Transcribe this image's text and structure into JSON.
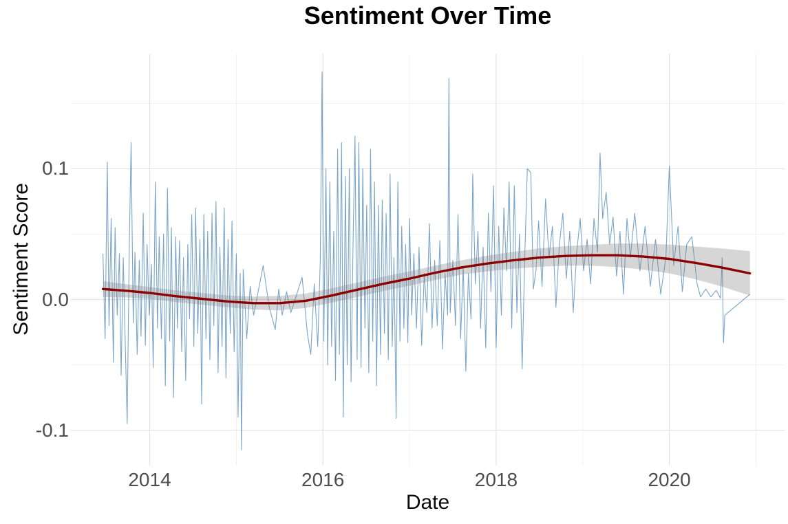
{
  "chart_data": {
    "type": "line",
    "title": "Sentiment Over Time",
    "xlabel": "Date",
    "ylabel": "Sentiment Score",
    "xlim": [
      2013.09,
      2021.33
    ],
    "ylim": [
      -0.127,
      0.188
    ],
    "grid": "on",
    "legend": "none",
    "x_ticks": [
      {
        "label": "2014",
        "value": 2014
      },
      {
        "label": "2016",
        "value": 2016
      },
      {
        "label": "2018",
        "value": 2018
      },
      {
        "label": "2020",
        "value": 2020
      }
    ],
    "y_ticks": [
      {
        "label": "0.1",
        "value": 0.1
      },
      {
        "label": "0.0",
        "value": 0.0
      },
      {
        "label": "-0.1",
        "value": -0.1
      }
    ],
    "x_minor_ticks": [
      2015,
      2017,
      2019,
      2021
    ],
    "y_minor_ticks": [
      0.15,
      0.05,
      -0.05
    ],
    "colors": {
      "background": "#ffffff",
      "grid_major": "#e3e3e3",
      "grid_minor": "#f0f0f0",
      "tick_label": "#4d4d4d",
      "series_blue": "rgba(70,130,180,0.72)",
      "trend_red": "#8b0000",
      "ci_gray": "rgba(127,127,127,0.32)"
    },
    "series": [
      {
        "name": "daily_sentiment",
        "color": "rgba(70,130,180,0.72)",
        "points": [
          [
            2013.46,
            0.035
          ],
          [
            2013.485,
            -0.03
          ],
          [
            2013.51,
            0.105
          ],
          [
            2013.53,
            -0.02
          ],
          [
            2013.555,
            0.062
          ],
          [
            2013.58,
            -0.048
          ],
          [
            2013.6,
            0.055
          ],
          [
            2013.625,
            -0.012
          ],
          [
            2013.65,
            0.035
          ],
          [
            2013.67,
            -0.058
          ],
          [
            2013.695,
            0.032
          ],
          [
            2013.72,
            -0.04
          ],
          [
            2013.74,
            -0.095
          ],
          [
            2013.765,
            0.042
          ],
          [
            2013.785,
            0.12
          ],
          [
            2013.81,
            -0.018
          ],
          [
            2013.83,
            0.036
          ],
          [
            2013.855,
            -0.042
          ],
          [
            2013.88,
            0.03
          ],
          [
            2013.9,
            -0.028
          ],
          [
            2013.925,
            0.066
          ],
          [
            2013.95,
            -0.035
          ],
          [
            2013.97,
            0.042
          ],
          [
            2013.995,
            -0.012
          ],
          [
            2014.02,
            0.027
          ],
          [
            2014.04,
            -0.052
          ],
          [
            2014.065,
            0.09
          ],
          [
            2014.09,
            -0.022
          ],
          [
            2014.11,
            0.048
          ],
          [
            2014.135,
            -0.03
          ],
          [
            2014.16,
            0.05
          ],
          [
            2014.18,
            -0.066
          ],
          [
            2014.205,
            0.085
          ],
          [
            2014.23,
            -0.032
          ],
          [
            2014.25,
            0.055
          ],
          [
            2014.275,
            -0.075
          ],
          [
            2014.3,
            0.048
          ],
          [
            2014.32,
            -0.022
          ],
          [
            2014.345,
            0.045
          ],
          [
            2014.37,
            -0.04
          ],
          [
            2014.39,
            0.032
          ],
          [
            2014.415,
            -0.062
          ],
          [
            2014.44,
            0.042
          ],
          [
            2014.46,
            -0.015
          ],
          [
            2014.485,
            0.065
          ],
          [
            2014.51,
            -0.036
          ],
          [
            2014.53,
            0.07
          ],
          [
            2014.555,
            -0.026
          ],
          [
            2014.58,
            0.046
          ],
          [
            2014.6,
            -0.08
          ],
          [
            2014.625,
            0.065
          ],
          [
            2014.65,
            -0.03
          ],
          [
            2014.67,
            0.052
          ],
          [
            2014.695,
            -0.046
          ],
          [
            2014.72,
            0.066
          ],
          [
            2014.74,
            -0.02
          ],
          [
            2014.765,
            0.075
          ],
          [
            2014.79,
            -0.056
          ],
          [
            2014.81,
            0.04
          ],
          [
            2014.835,
            -0.036
          ],
          [
            2014.86,
            0.07
          ],
          [
            2014.88,
            -0.06
          ],
          [
            2014.905,
            0.046
          ],
          [
            2014.93,
            -0.026
          ],
          [
            2014.95,
            0.06
          ],
          [
            2014.975,
            -0.04
          ],
          [
            2015.0,
            0.035
          ],
          [
            2015.02,
            -0.09
          ],
          [
            2015.045,
            0.02
          ],
          [
            2015.06,
            -0.115
          ],
          [
            2015.08,
            0.023
          ],
          [
            2015.12,
            -0.03
          ],
          [
            2015.16,
            0.01
          ],
          [
            2015.2,
            -0.012
          ],
          [
            2015.31,
            0.026
          ],
          [
            2015.38,
            -0.006
          ],
          [
            2015.45,
            -0.023
          ],
          [
            2015.49,
            0.008
          ],
          [
            2015.53,
            -0.012
          ],
          [
            2015.58,
            0.006
          ],
          [
            2015.63,
            -0.01
          ],
          [
            2015.76,
            0.017
          ],
          [
            2015.82,
            -0.026
          ],
          [
            2015.86,
            -0.042
          ],
          [
            2015.9,
            0.012
          ],
          [
            2015.94,
            -0.036
          ],
          [
            2015.97,
            0.03
          ],
          [
            2015.99,
            0.174
          ],
          [
            2016.01,
            -0.032
          ],
          [
            2016.035,
            0.1
          ],
          [
            2016.055,
            -0.05
          ],
          [
            2016.08,
            0.09
          ],
          [
            2016.1,
            -0.036
          ],
          [
            2016.125,
            0.052
          ],
          [
            2016.145,
            -0.062
          ],
          [
            2016.17,
            0.115
          ],
          [
            2016.19,
            -0.042
          ],
          [
            2016.215,
            0.12
          ],
          [
            2016.235,
            -0.09
          ],
          [
            2016.26,
            0.094
          ],
          [
            2016.28,
            -0.05
          ],
          [
            2016.305,
            0.1
          ],
          [
            2016.325,
            -0.063
          ],
          [
            2016.35,
            0.052
          ],
          [
            2016.37,
            0.125
          ],
          [
            2016.395,
            -0.046
          ],
          [
            2016.415,
            0.12
          ],
          [
            2016.44,
            -0.052
          ],
          [
            2016.46,
            0.1
          ],
          [
            2016.485,
            -0.022
          ],
          [
            2016.505,
            0.072
          ],
          [
            2016.53,
            -0.056
          ],
          [
            2016.55,
            0.115
          ],
          [
            2016.575,
            -0.032
          ],
          [
            2016.595,
            0.09
          ],
          [
            2016.62,
            -0.066
          ],
          [
            2016.64,
            0.072
          ],
          [
            2016.665,
            -0.042
          ],
          [
            2016.685,
            0.076
          ],
          [
            2016.71,
            -0.026
          ],
          [
            2016.73,
            0.066
          ],
          [
            2016.755,
            -0.046
          ],
          [
            2016.775,
            0.096
          ],
          [
            2016.8,
            -0.036
          ],
          [
            2016.82,
            0.032
          ],
          [
            2016.845,
            -0.091
          ],
          [
            2016.865,
            0.09
          ],
          [
            2016.89,
            -0.032
          ],
          [
            2016.91,
            0.056
          ],
          [
            2016.935,
            -0.022
          ],
          [
            2016.955,
            0.042
          ],
          [
            2016.98,
            -0.033
          ],
          [
            2017.0,
            0.062
          ],
          [
            2017.025,
            -0.012
          ],
          [
            2017.05,
            0.035
          ],
          [
            2017.08,
            -0.022
          ],
          [
            2017.11,
            0.04
          ],
          [
            2017.14,
            -0.035
          ],
          [
            2017.17,
            0.02
          ],
          [
            2017.2,
            -0.01
          ],
          [
            2017.23,
            0.058
          ],
          [
            2017.26,
            -0.022
          ],
          [
            2017.29,
            0.03
          ],
          [
            2017.32,
            -0.02
          ],
          [
            2017.35,
            0.045
          ],
          [
            2017.38,
            -0.038
          ],
          [
            2017.41,
            0.02
          ],
          [
            2017.44,
            -0.012
          ],
          [
            2017.455,
            0.169
          ],
          [
            2017.47,
            -0.01
          ],
          [
            2017.5,
            0.03
          ],
          [
            2017.53,
            -0.02
          ],
          [
            2017.56,
            0.065
          ],
          [
            2017.59,
            -0.03
          ],
          [
            2017.62,
            0.025
          ],
          [
            2017.65,
            -0.055
          ],
          [
            2017.68,
            0.02
          ],
          [
            2017.71,
            -0.015
          ],
          [
            2017.73,
            0.096
          ],
          [
            2017.76,
            0.012
          ],
          [
            2017.79,
            0.052
          ],
          [
            2017.82,
            -0.022
          ],
          [
            2017.85,
            0.04
          ],
          [
            2017.88,
            -0.037
          ],
          [
            2017.91,
            0.066
          ],
          [
            2017.94,
            0.006
          ],
          [
            2017.97,
            0.087
          ],
          [
            2018.0,
            -0.037
          ],
          [
            2018.03,
            0.056
          ],
          [
            2018.06,
            -0.012
          ],
          [
            2018.09,
            0.07
          ],
          [
            2018.12,
            0.022
          ],
          [
            2018.15,
            0.09
          ],
          [
            2018.18,
            -0.022
          ],
          [
            2018.21,
            0.087
          ],
          [
            2018.24,
            -0.01
          ],
          [
            2018.27,
            0.05
          ],
          [
            2018.3,
            -0.053
          ],
          [
            2018.33,
            0.032
          ],
          [
            2018.36,
            0.1
          ],
          [
            2018.4,
            0.097
          ],
          [
            2018.43,
            0.008
          ],
          [
            2018.46,
            0.022
          ],
          [
            2018.49,
            0.06
          ],
          [
            2018.53,
            0.01
          ],
          [
            2018.57,
            0.077
          ],
          [
            2018.61,
            0.032
          ],
          [
            2018.65,
            0.056
          ],
          [
            2018.69,
            -0.006
          ],
          [
            2018.73,
            0.042
          ],
          [
            2018.77,
            0.066
          ],
          [
            2018.81,
            0.016
          ],
          [
            2018.85,
            0.052
          ],
          [
            2018.89,
            -0.01
          ],
          [
            2018.93,
            0.036
          ],
          [
            2018.97,
            0.062
          ],
          [
            2019.01,
            0.022
          ],
          [
            2019.05,
            0.046
          ],
          [
            2019.09,
            0.012
          ],
          [
            2019.13,
            0.062
          ],
          [
            2019.17,
            0.036
          ],
          [
            2019.2,
            0.112
          ],
          [
            2019.23,
            0.062
          ],
          [
            2019.27,
            0.082
          ],
          [
            2019.31,
            0.042
          ],
          [
            2019.35,
            0.063
          ],
          [
            2019.39,
            0.018
          ],
          [
            2019.43,
            0.052
          ],
          [
            2019.47,
            0.004
          ],
          [
            2019.51,
            0.062
          ],
          [
            2019.55,
            0.032
          ],
          [
            2019.6,
            0.066
          ],
          [
            2019.66,
            0.022
          ],
          [
            2019.72,
            0.056
          ],
          [
            2019.78,
            0.01
          ],
          [
            2019.84,
            0.046
          ],
          [
            2019.9,
            0.004
          ],
          [
            2019.96,
            0.032
          ],
          [
            2020.0,
            0.102
          ],
          [
            2020.05,
            0.026
          ],
          [
            2020.1,
            0.056
          ],
          [
            2020.15,
            0.006
          ],
          [
            2020.2,
            0.042
          ],
          [
            2020.26,
            0.048
          ],
          [
            2020.32,
            0.012
          ],
          [
            2020.36,
            0.002
          ],
          [
            2020.42,
            0.008
          ],
          [
            2020.48,
            0.002
          ],
          [
            2020.54,
            0.007
          ],
          [
            2020.59,
            0.001
          ],
          [
            2020.61,
            0.032
          ],
          [
            2020.625,
            -0.033
          ],
          [
            2020.64,
            -0.012
          ],
          [
            2020.93,
            0.004
          ]
        ]
      },
      {
        "name": "loess_trend",
        "color": "#8b0000",
        "ci_color": "rgba(127,127,127,0.32)",
        "points": [
          [
            2013.46,
            0.008,
            0.006
          ],
          [
            2013.75,
            0.0065,
            0.005
          ],
          [
            2014.0,
            0.005,
            0.0045
          ],
          [
            2014.3,
            0.0025,
            0.0045
          ],
          [
            2014.6,
            0.0005,
            0.0045
          ],
          [
            2014.9,
            -0.0015,
            0.0045
          ],
          [
            2015.2,
            -0.0028,
            0.005
          ],
          [
            2015.5,
            -0.0028,
            0.0055
          ],
          [
            2015.8,
            -0.001,
            0.0055
          ],
          [
            2016.1,
            0.003,
            0.0055
          ],
          [
            2016.4,
            0.0075,
            0.0055
          ],
          [
            2016.7,
            0.012,
            0.0055
          ],
          [
            2017.0,
            0.016,
            0.0055
          ],
          [
            2017.3,
            0.0205,
            0.0055
          ],
          [
            2017.6,
            0.0245,
            0.0055
          ],
          [
            2017.9,
            0.0275,
            0.006
          ],
          [
            2018.2,
            0.03,
            0.0065
          ],
          [
            2018.5,
            0.032,
            0.007
          ],
          [
            2018.8,
            0.0333,
            0.0075
          ],
          [
            2019.1,
            0.0338,
            0.008
          ],
          [
            2019.4,
            0.0338,
            0.009
          ],
          [
            2019.7,
            0.0328,
            0.01
          ],
          [
            2020.0,
            0.031,
            0.011
          ],
          [
            2020.3,
            0.028,
            0.0125
          ],
          [
            2020.6,
            0.0245,
            0.0145
          ],
          [
            2020.93,
            0.02,
            0.017
          ]
        ]
      }
    ]
  }
}
